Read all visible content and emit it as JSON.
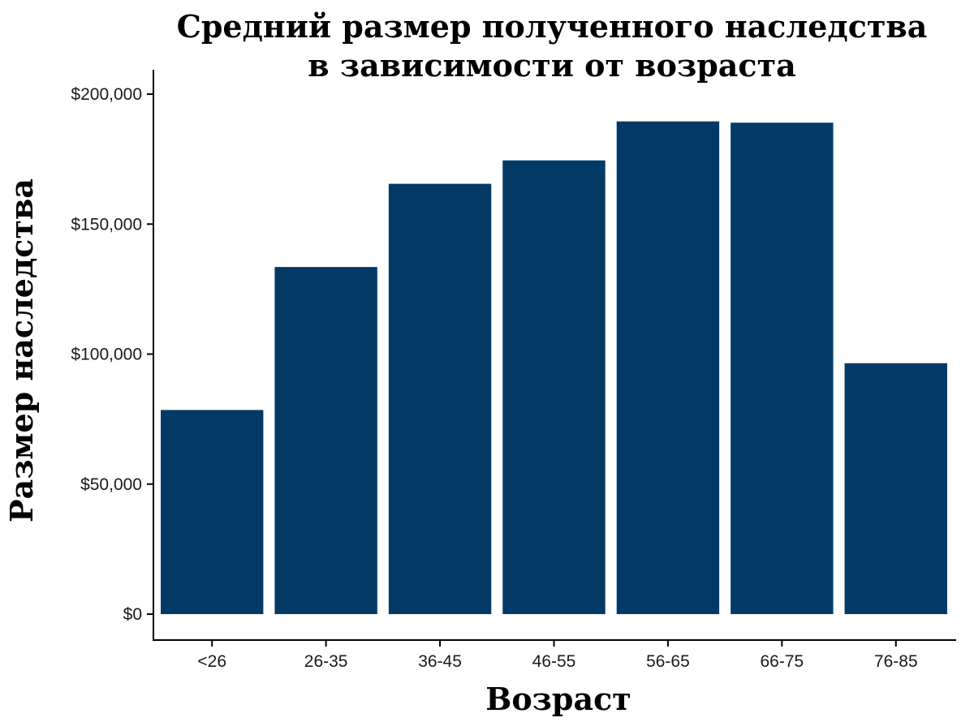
{
  "chart_data": {
    "type": "bar",
    "title_line1": "Средний размер полученного наследства",
    "title_line2": "в зависимости от возраста",
    "xlabel": "Возраст",
    "ylabel": "Размер наследства",
    "categories": [
      "<26",
      "26-35",
      "36-45",
      "46-55",
      "56-65",
      "66-75",
      "76-85"
    ],
    "values": [
      78500,
      133500,
      165500,
      174500,
      189500,
      189000,
      96500
    ],
    "ylim": [
      0,
      200000
    ],
    "yticks": [
      0,
      50000,
      100000,
      150000,
      200000
    ],
    "ytick_labels": [
      "$0",
      "$50,000",
      "$100,000",
      "$150,000",
      "$200,000"
    ],
    "bar_color": "#023a65",
    "grid": false,
    "legend": "none"
  }
}
